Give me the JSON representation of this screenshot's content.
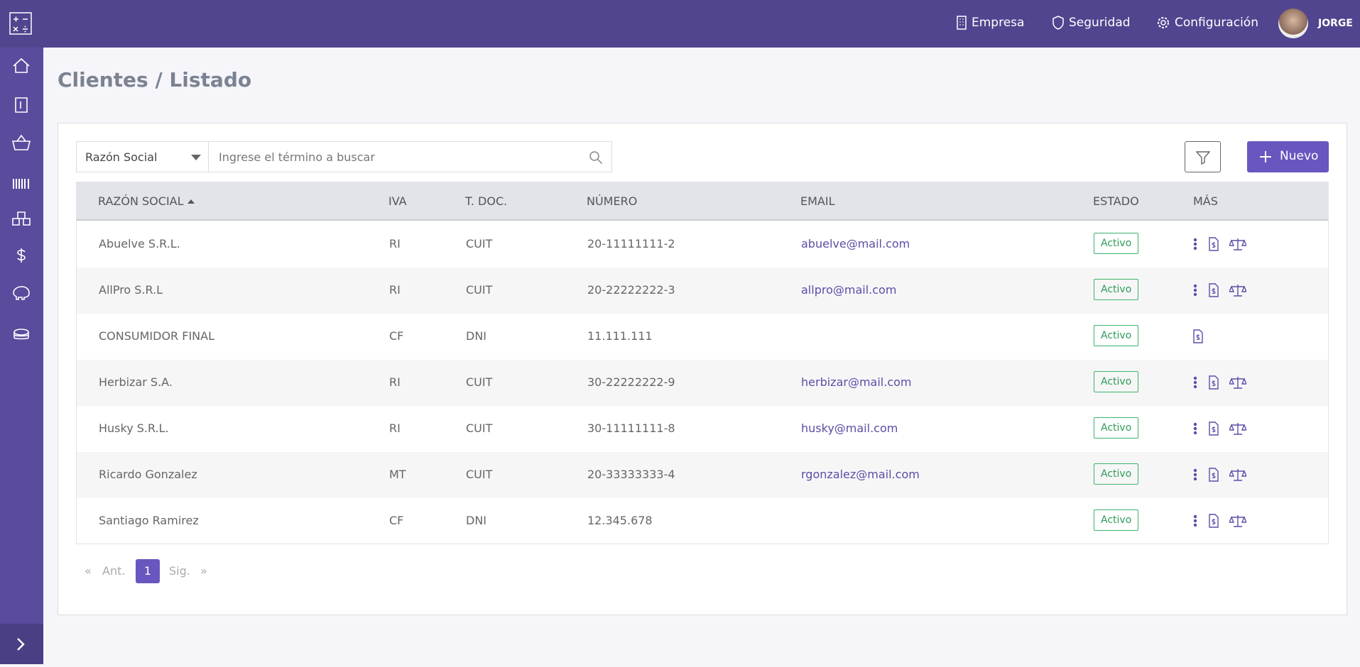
{
  "header": {
    "nav": [
      "Empresa",
      "Seguridad",
      "Configuración"
    ],
    "user": "JORGE",
    "title": "Clientes / Listado"
  },
  "search": {
    "field": "Razón Social",
    "placeholder": "Ingrese el término a buscar",
    "new_button": "Nuevo"
  },
  "table": {
    "columns": [
      "RAZÓN SOCIAL",
      "IVA",
      "T. DOC.",
      "NÚMERO",
      "EMAIL",
      "ESTADO",
      "MÁS"
    ],
    "rows": [
      [
        "Abuelve S.R.L.",
        "RI",
        "CUIT",
        "20-11111111-2",
        "abuelve@mail.com",
        "Activo"
      ],
      [
        "AllPro S.R.L",
        "RI",
        "CUIT",
        "20-22222222-3",
        "allpro@mail.com",
        "Activo"
      ],
      [
        "CONSUMIDOR FINAL",
        "CF",
        "DNI",
        "11.111.111",
        null,
        "Activo"
      ],
      [
        "Herbizar S.A.",
        "RI",
        "CUIT",
        "30-22222222-9",
        "herbizar@mail.com",
        "Activo"
      ],
      [
        "Husky S.R.L.",
        "RI",
        "CUIT",
        "30-11111111-8",
        "husky@mail.com",
        "Activo"
      ],
      [
        "Ricardo Gonzalez",
        "MT",
        "CUIT",
        "20-33333333-4",
        "rgonzalez@mail.com",
        "Activo"
      ],
      [
        "Santiago Ramirez",
        "CF",
        "DNI",
        "12.345.678",
        null,
        "Activo"
      ]
    ]
  },
  "pagination": {
    "first": "«",
    "prev": "Ant.",
    "page": "1",
    "next": "Sig.",
    "last": "»"
  }
}
